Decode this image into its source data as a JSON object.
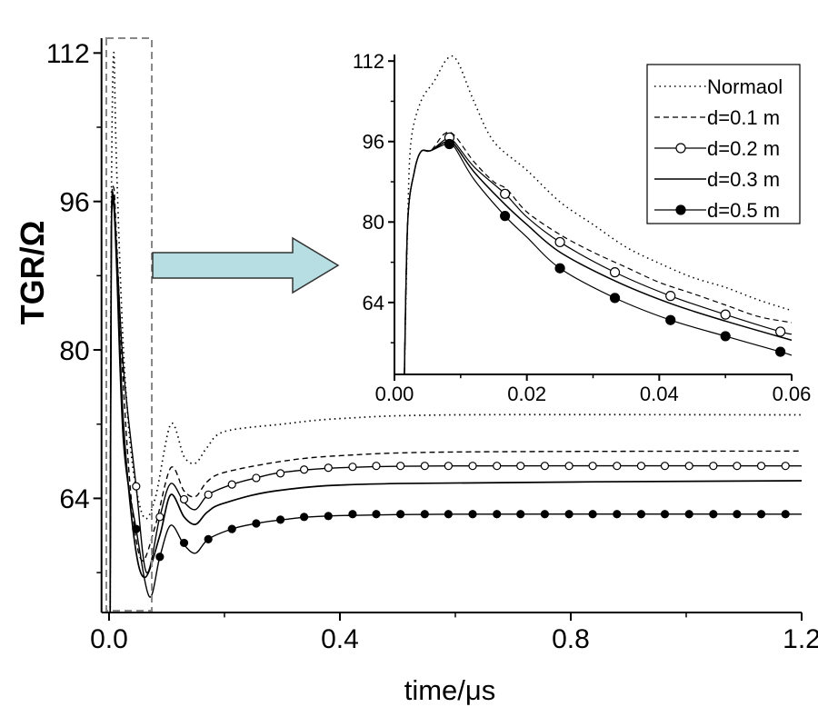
{
  "chart_data": [
    {
      "id": "main",
      "type": "line",
      "xlabel": "time/μs",
      "ylabel": "TGR/Ω",
      "xlim": [
        -0.013,
        1.2
      ],
      "ylim": [
        51.7,
        113.6
      ],
      "xticks": [
        0.0,
        0.4,
        0.8,
        1.2
      ],
      "xtick_labels": [
        "0.0",
        "0.4",
        "0.8",
        "1.2"
      ],
      "xminor": [
        0.2,
        0.6,
        1.0
      ],
      "yticks": [
        64,
        80,
        96,
        112
      ],
      "ytick_labels": [
        "64",
        "80",
        "96",
        "112"
      ],
      "yminor": [
        56,
        72,
        88,
        104
      ],
      "grid": false,
      "series": [
        {
          "name": "Normaol",
          "style": "dotted",
          "points": [
            [
              0.002,
              51.7
            ],
            [
              0.004,
              95
            ],
            [
              0.008,
              112
            ],
            [
              0.013,
              100
            ],
            [
              0.025,
              80
            ],
            [
              0.04,
              68
            ],
            [
              0.06,
              62
            ],
            [
              0.08,
              64
            ],
            [
              0.107,
              72
            ],
            [
              0.13,
              68.5
            ],
            [
              0.15,
              67.8
            ],
            [
              0.17,
              69.5
            ],
            [
              0.2,
              71.2
            ],
            [
              0.3,
              72
            ],
            [
              0.4,
              72.6
            ],
            [
              0.6,
              73
            ],
            [
              1.2,
              73
            ]
          ],
          "markers": []
        },
        {
          "name": "d=0.1 m",
          "style": "dashed",
          "points": [
            [
              0.002,
              51.7
            ],
            [
              0.004,
              92
            ],
            [
              0.008,
              97.5
            ],
            [
              0.013,
              92
            ],
            [
              0.025,
              76
            ],
            [
              0.04,
              63
            ],
            [
              0.057,
              57.3
            ],
            [
              0.08,
              61
            ],
            [
              0.107,
              67.3
            ],
            [
              0.13,
              64.8
            ],
            [
              0.15,
              64.2
            ],
            [
              0.17,
              65.8
            ],
            [
              0.2,
              66.8
            ],
            [
              0.3,
              68
            ],
            [
              0.4,
              68.6
            ],
            [
              0.6,
              69
            ],
            [
              1.2,
              69.1
            ]
          ],
          "markers": []
        },
        {
          "name": "d=0.2 m",
          "style": "open-circle",
          "points": [
            [
              0.002,
              51.7
            ],
            [
              0.004,
              92
            ],
            [
              0.008,
              96.5
            ],
            [
              0.013,
              91
            ],
            [
              0.025,
              78
            ],
            [
              0.047,
              65.3
            ],
            [
              0.065,
              56
            ],
            [
              0.088,
              62
            ],
            [
              0.107,
              65.6
            ],
            [
              0.13,
              63.6
            ],
            [
              0.15,
              62.8
            ],
            [
              0.172,
              64.4
            ],
            [
              0.213,
              65.5
            ],
            [
              0.255,
              66.2
            ],
            [
              0.3,
              66.8
            ],
            [
              0.4,
              67.3
            ],
            [
              0.6,
              67.5
            ],
            [
              1.2,
              67.5
            ]
          ],
          "markers": [
            [
              0.047,
              65.3
            ],
            [
              0.088,
              62
            ],
            [
              0.13,
              63.9
            ],
            [
              0.172,
              64.4
            ],
            [
              0.213,
              65.5
            ],
            [
              0.255,
              66.2
            ],
            [
              0.297,
              66.7
            ],
            [
              0.338,
              67.1
            ],
            [
              0.38,
              67.3
            ],
            [
              0.422,
              67.4
            ],
            [
              0.463,
              67.5
            ],
            [
              0.505,
              67.5
            ],
            [
              0.547,
              67.5
            ],
            [
              0.588,
              67.5
            ],
            [
              0.63,
              67.5
            ],
            [
              0.672,
              67.5
            ],
            [
              0.713,
              67.5
            ],
            [
              0.755,
              67.5
            ],
            [
              0.797,
              67.5
            ],
            [
              0.838,
              67.5
            ],
            [
              0.88,
              67.5
            ],
            [
              0.922,
              67.5
            ],
            [
              0.963,
              67.5
            ],
            [
              1.005,
              67.5
            ],
            [
              1.047,
              67.5
            ],
            [
              1.088,
              67.5
            ],
            [
              1.13,
              67.5
            ],
            [
              1.172,
              67.5
            ]
          ]
        },
        {
          "name": "d=0.3 m",
          "style": "solid",
          "points": [
            [
              0.002,
              51.7
            ],
            [
              0.004,
              92
            ],
            [
              0.008,
              96
            ],
            [
              0.013,
              90
            ],
            [
              0.025,
              72
            ],
            [
              0.045,
              59
            ],
            [
              0.063,
              55.5
            ],
            [
              0.088,
              60
            ],
            [
              0.107,
              64.4
            ],
            [
              0.13,
              62
            ],
            [
              0.15,
              61.2
            ],
            [
              0.17,
              62.5
            ],
            [
              0.2,
              63.5
            ],
            [
              0.3,
              64.9
            ],
            [
              0.5,
              65.6
            ],
            [
              1.2,
              65.9
            ]
          ],
          "markers": []
        },
        {
          "name": "d=0.5 m",
          "style": "filled-circle",
          "points": [
            [
              0.002,
              51.7
            ],
            [
              0.004,
              92
            ],
            [
              0.008,
              95.5
            ],
            [
              0.013,
              89
            ],
            [
              0.025,
              70
            ],
            [
              0.047,
              60.7
            ],
            [
              0.07,
              53.4
            ],
            [
              0.088,
              57.7
            ],
            [
              0.107,
              61.1
            ],
            [
              0.13,
              59
            ],
            [
              0.15,
              58.1
            ],
            [
              0.172,
              59.6
            ],
            [
              0.213,
              60.7
            ],
            [
              0.255,
              61.3
            ],
            [
              0.3,
              61.7
            ],
            [
              0.38,
              62.1
            ],
            [
              0.6,
              62.3
            ],
            [
              1.2,
              62.3
            ]
          ],
          "markers": [
            [
              0.047,
              60.7
            ],
            [
              0.088,
              57.7
            ],
            [
              0.13,
              59.2
            ],
            [
              0.172,
              59.6
            ],
            [
              0.213,
              60.7
            ],
            [
              0.255,
              61.3
            ],
            [
              0.297,
              61.7
            ],
            [
              0.338,
              62.0
            ],
            [
              0.38,
              62.1
            ],
            [
              0.422,
              62.3
            ],
            [
              0.463,
              62.3
            ],
            [
              0.505,
              62.3
            ],
            [
              0.547,
              62.3
            ],
            [
              0.588,
              62.3
            ],
            [
              0.63,
              62.3
            ],
            [
              0.672,
              62.3
            ],
            [
              0.713,
              62.3
            ],
            [
              0.755,
              62.3
            ],
            [
              0.797,
              62.3
            ],
            [
              0.838,
              62.3
            ],
            [
              0.88,
              62.3
            ],
            [
              0.922,
              62.3
            ],
            [
              0.963,
              62.3
            ],
            [
              1.005,
              62.3
            ],
            [
              1.047,
              62.3
            ],
            [
              1.088,
              62.3
            ],
            [
              1.13,
              62.3
            ],
            [
              1.172,
              62.3
            ]
          ]
        }
      ],
      "zoom_region": {
        "x": [
          -0.005,
          0.065
        ],
        "y": [
          51.7,
          113.6
        ]
      }
    },
    {
      "id": "inset",
      "type": "line",
      "xlim": [
        0.0,
        0.06
      ],
      "ylim": [
        49.7,
        113.3
      ],
      "xticks": [
        0.0,
        0.02,
        0.04,
        0.06
      ],
      "xtick_labels": [
        "0.00",
        "0.02",
        "0.04",
        "0.06"
      ],
      "xminor": [
        0.01,
        0.03,
        0.05
      ],
      "yticks": [
        64,
        80,
        96,
        112
      ],
      "ytick_labels": [
        "64",
        "80",
        "96",
        "112"
      ],
      "yminor": [
        56,
        72,
        88,
        104
      ],
      "legend": {
        "position": "top-right",
        "entries": [
          "Normaol",
          "d=0.1 m",
          "d=0.2 m",
          "d=0.3 m",
          "d=0.5 m"
        ]
      },
      "series": [
        {
          "name": "Normaol",
          "style": "dotted",
          "points": [
            [
              0.0015,
              49.7
            ],
            [
              0.002,
              80
            ],
            [
              0.0025,
              96
            ],
            [
              0.004,
              104
            ],
            [
              0.006,
              108
            ],
            [
              0.008,
              112.5
            ],
            [
              0.0095,
              112
            ],
            [
              0.012,
              104
            ],
            [
              0.015,
              96
            ],
            [
              0.02,
              90.3
            ],
            [
              0.025,
              84
            ],
            [
              0.03,
              79.5
            ],
            [
              0.035,
              75
            ],
            [
              0.04,
              71.8
            ],
            [
              0.045,
              69
            ],
            [
              0.05,
              67
            ],
            [
              0.055,
              64.5
            ],
            [
              0.06,
              62.4
            ]
          ],
          "markers": []
        },
        {
          "name": "d=0.1 m",
          "style": "dashed",
          "points": [
            [
              0.0015,
              49.7
            ],
            [
              0.002,
              80
            ],
            [
              0.003,
              90
            ],
            [
              0.004,
              94
            ],
            [
              0.0055,
              94.2
            ],
            [
              0.0075,
              97.5
            ],
            [
              0.009,
              97.3
            ],
            [
              0.012,
              92
            ],
            [
              0.015,
              88
            ],
            [
              0.017,
              86.5
            ],
            [
              0.02,
              82
            ],
            [
              0.025,
              77.5
            ],
            [
              0.03,
              74
            ],
            [
              0.035,
              71
            ],
            [
              0.04,
              68
            ],
            [
              0.045,
              65.8
            ],
            [
              0.05,
              63.5
            ],
            [
              0.055,
              61.2
            ],
            [
              0.06,
              60
            ]
          ],
          "markers": []
        },
        {
          "name": "d=0.2 m",
          "style": "open-circle",
          "points": [
            [
              0.0015,
              49.7
            ],
            [
              0.002,
              80
            ],
            [
              0.003,
              90
            ],
            [
              0.004,
              94
            ],
            [
              0.0055,
              94.2
            ],
            [
              0.0078,
              96.5
            ],
            [
              0.009,
              96
            ],
            [
              0.012,
              91
            ],
            [
              0.0167,
              85.6
            ],
            [
              0.02,
              81
            ],
            [
              0.025,
              76
            ],
            [
              0.0333,
              70
            ],
            [
              0.0417,
              65.3
            ],
            [
              0.05,
              61.6
            ],
            [
              0.0583,
              58.2
            ],
            [
              0.06,
              57.7
            ]
          ],
          "markers": [
            [
              0.0083,
              96.8
            ],
            [
              0.0167,
              85.6
            ],
            [
              0.025,
              76
            ],
            [
              0.0333,
              70
            ],
            [
              0.0417,
              65.3
            ],
            [
              0.05,
              61.6
            ],
            [
              0.0583,
              58.2
            ]
          ]
        },
        {
          "name": "d=0.3 m",
          "style": "solid",
          "points": [
            [
              0.0015,
              49.7
            ],
            [
              0.002,
              80
            ],
            [
              0.003,
              90
            ],
            [
              0.004,
              94
            ],
            [
              0.0055,
              94.2
            ],
            [
              0.0078,
              96
            ],
            [
              0.009,
              95.5
            ],
            [
              0.012,
              90
            ],
            [
              0.0167,
              83.5
            ],
            [
              0.02,
              79.5
            ],
            [
              0.025,
              74
            ],
            [
              0.0333,
              68.3
            ],
            [
              0.0417,
              63.8
            ],
            [
              0.05,
              60.3
            ],
            [
              0.06,
              56.5
            ]
          ],
          "markers": []
        },
        {
          "name": "d=0.5 m",
          "style": "filled-circle",
          "points": [
            [
              0.0015,
              49.7
            ],
            [
              0.002,
              80
            ],
            [
              0.003,
              90
            ],
            [
              0.004,
              94
            ],
            [
              0.0055,
              94.2
            ],
            [
              0.0078,
              95.5
            ],
            [
              0.009,
              95
            ],
            [
              0.012,
              88.5
            ],
            [
              0.0167,
              81.2
            ],
            [
              0.02,
              77
            ],
            [
              0.025,
              70.8
            ],
            [
              0.0333,
              64.9
            ],
            [
              0.0417,
              60.5
            ],
            [
              0.05,
              57.3
            ],
            [
              0.0583,
              54.2
            ],
            [
              0.06,
              53.5
            ]
          ],
          "markers": [
            [
              0.0083,
              95.5
            ],
            [
              0.0167,
              81.2
            ],
            [
              0.025,
              70.8
            ],
            [
              0.0333,
              64.9
            ],
            [
              0.0417,
              60.5
            ],
            [
              0.05,
              57.3
            ],
            [
              0.0583,
              54.2
            ]
          ]
        }
      ]
    }
  ],
  "colors": {
    "line": "#000000",
    "arrow_fill": "#b7dfe3",
    "zoom_box": "#888888"
  }
}
